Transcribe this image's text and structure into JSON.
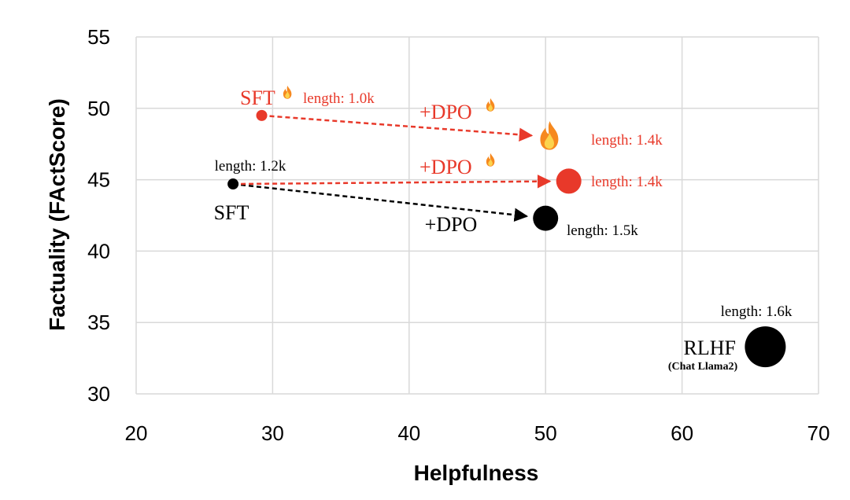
{
  "chart_data": {
    "type": "scatter",
    "xlabel": "Helpfulness",
    "ylabel": "Factuality (FActScore)",
    "xlim": [
      20,
      70
    ],
    "ylim": [
      30,
      55
    ],
    "xticks": [
      "20",
      "30",
      "40",
      "50",
      "60",
      "70"
    ],
    "yticks": [
      "30",
      "35",
      "40",
      "45",
      "50",
      "55"
    ],
    "grid": true,
    "points": [
      {
        "id": "sft",
        "name": "SFT",
        "x": 27.1,
        "y": 44.7,
        "color": "#000000",
        "length": "length: 1.2k",
        "size": "small"
      },
      {
        "id": "sft_dpo",
        "name": "+DPO",
        "x": 50.0,
        "y": 42.3,
        "color": "#000000",
        "length": "length: 1.5k",
        "size": "medium"
      },
      {
        "id": "sft_fact",
        "name": "SFT",
        "x": 29.2,
        "y": 49.5,
        "color": "#e8392a",
        "length": "length: 1.0k",
        "size": "small"
      },
      {
        "id": "sft_fact_dpo",
        "name": "+DPO",
        "x": 50.3,
        "y": 48.0,
        "color": "#e8392a",
        "length": "length: 1.4k",
        "marker": "fire"
      },
      {
        "id": "sft_dpo_fact",
        "name": "+DPO",
        "x": 51.7,
        "y": 44.9,
        "color": "#e8392a",
        "length": "length: 1.4k",
        "size": "medium"
      },
      {
        "id": "rlhf",
        "name": "RLHF",
        "subtitle": "(Chat Llama2)",
        "x": 66.1,
        "y": 33.3,
        "color": "#000000",
        "length": "length: 1.6k",
        "size": "large"
      }
    ],
    "arrows": [
      {
        "from": "sft",
        "to": "sft_dpo",
        "color": "#000000",
        "style": "dashed"
      },
      {
        "from": "sft",
        "to": "sft_dpo_fact",
        "color": "#e8392a",
        "style": "dashed"
      },
      {
        "from": "sft_fact",
        "to": "sft_fact_dpo",
        "color": "#e8392a",
        "style": "dashed"
      }
    ]
  },
  "colors": {
    "red": "#e8392a",
    "black": "#000000",
    "grid": "#d9d9d9"
  },
  "icons": {
    "fire": "fire-icon"
  }
}
